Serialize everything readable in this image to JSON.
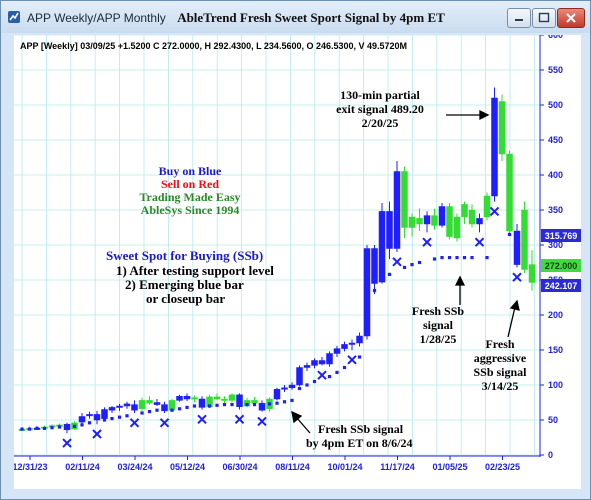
{
  "window": {
    "tab_label": "APP Weekly/APP Monthly",
    "title": "AbleTrend Fresh Sweet Sport Signal by 4pm ET",
    "minimize_icon": "minimize-icon",
    "maximize_icon": "maximize-icon",
    "close_icon": "close-icon"
  },
  "chart_header": "APP [Weekly] 03/09/25 +1.5200 C 272.0000, H 292.4300, L 234.5600, O 246.5300, V 49.5720M",
  "colors": {
    "up_bar": "#33dd33",
    "down_bar": "#1e1eff",
    "grid": "#b6eaea",
    "axis_text": "#2020dd",
    "annotation_blue": "#1a1acc",
    "annotation_red": "#ee1111",
    "annotation_green": "#2a8a2a",
    "badge_blue": "#2b2bd6",
    "badge_green": "#3fdc3f"
  },
  "annotations": {
    "buy_blue": "Buy on Blue",
    "sell_red": "Sell on Red",
    "trading_easy": "Trading Made Easy",
    "ablesys": "AbleSys Since 1994",
    "sweet_title": "Sweet Spot for Buying (SSb)",
    "sweet_1": "1) After testing support level",
    "sweet_2": "2) Emerging blue bar",
    "sweet_3": "or closeup bar",
    "exit_1": "130-min partial",
    "exit_2": "exit signal 489.20",
    "exit_3": "2/20/25",
    "ssb_jan_1": "Fresh SSb",
    "ssb_jan_2": "signal",
    "ssb_jan_3": "1/28/25",
    "ssb_aug_1": "Fresh SSb signal",
    "ssb_aug_2": "by 4pm ET on 8/6/24",
    "ssb_mar_1": "Fresh",
    "ssb_mar_2": "aggressive",
    "ssb_mar_3": "SSb signal",
    "ssb_mar_4": "3/14/25"
  },
  "price_badges": [
    "315.769",
    "272.000",
    "242.107"
  ],
  "chart_data": {
    "type": "candlestick",
    "title": "AbleTrend Fresh Sweet Sport Signal by 4pm ET",
    "xlabel": "",
    "ylabel": "",
    "ylim": [
      0,
      600
    ],
    "yticks": [
      0,
      50,
      100,
      150,
      200,
      250,
      300,
      350,
      400,
      450,
      500,
      550,
      600
    ],
    "xticks": [
      "12/31/23",
      "02/11/24",
      "03/24/24",
      "05/12/24",
      "06/30/24",
      "08/11/24",
      "10/01/24",
      "11/17/24",
      "01/05/25",
      "02/23/25"
    ],
    "grid": true,
    "weeks": [
      {
        "o": 36.5,
        "h": 39.0,
        "l": 35.0,
        "c": 37.0,
        "d": "up",
        "s": 37,
        "x": false
      },
      {
        "o": 37.5,
        "h": 40.5,
        "l": 36.0,
        "c": 38.0,
        "d": "up",
        "s": 37,
        "x": false
      },
      {
        "o": 38.5,
        "h": 41.0,
        "l": 37.0,
        "c": 38.0,
        "d": "down",
        "s": 38,
        "x": false
      },
      {
        "o": 38.0,
        "h": 42.0,
        "l": 36.5,
        "c": 40.0,
        "d": "up",
        "s": 38,
        "x": false
      },
      {
        "o": 40.0,
        "h": 44.0,
        "l": 38.0,
        "c": 42.0,
        "d": "up",
        "s": 39,
        "x": false
      },
      {
        "o": 42.0,
        "h": 45.0,
        "l": 40.0,
        "c": 43.0,
        "d": "up",
        "s": 40,
        "x": false
      },
      {
        "o": 44.0,
        "h": 46.0,
        "l": 31.0,
        "c": 36.0,
        "d": "down",
        "s": null,
        "x": true
      },
      {
        "o": 37.0,
        "h": 48.0,
        "l": 36.0,
        "c": 46.0,
        "d": "up",
        "s": 41,
        "x": false
      },
      {
        "o": 47.0,
        "h": 60.0,
        "l": 45.0,
        "c": 55.0,
        "d": "down",
        "s": 43,
        "x": false
      },
      {
        "o": 56.0,
        "h": 62.0,
        "l": 52.0,
        "c": 58.0,
        "d": "down",
        "s": 46,
        "x": false
      },
      {
        "o": 58.0,
        "h": 63.0,
        "l": 44.0,
        "c": 50.0,
        "d": "down",
        "s": null,
        "x": true
      },
      {
        "o": 52.0,
        "h": 68.0,
        "l": 50.0,
        "c": 65.0,
        "d": "down",
        "s": 50,
        "x": false
      },
      {
        "o": 64.0,
        "h": 70.0,
        "l": 60.0,
        "c": 68.0,
        "d": "down",
        "s": 52,
        "x": false
      },
      {
        "o": 68.0,
        "h": 73.0,
        "l": 63.0,
        "c": 70.0,
        "d": "down",
        "s": 54,
        "x": false
      },
      {
        "o": 70.0,
        "h": 76.0,
        "l": 66.0,
        "c": 73.0,
        "d": "down",
        "s": 56,
        "x": false
      },
      {
        "o": 72.0,
        "h": 78.0,
        "l": 60.0,
        "c": 64.0,
        "d": "down",
        "s": null,
        "x": true
      },
      {
        "o": 66.0,
        "h": 82.0,
        "l": 63.0,
        "c": 78.0,
        "d": "up",
        "s": 60,
        "x": false
      },
      {
        "o": 78.0,
        "h": 84.0,
        "l": 72.0,
        "c": 74.0,
        "d": "up",
        "s": 62,
        "x": false
      },
      {
        "o": 75.0,
        "h": 80.0,
        "l": 70.0,
        "c": 72.0,
        "d": "down",
        "s": 64,
        "x": false
      },
      {
        "o": 72.0,
        "h": 76.0,
        "l": 60.0,
        "c": 63.0,
        "d": "down",
        "s": null,
        "x": true
      },
      {
        "o": 64.0,
        "h": 80.0,
        "l": 62.0,
        "c": 78.0,
        "d": "up",
        "s": 64,
        "x": false
      },
      {
        "o": 78.0,
        "h": 86.0,
        "l": 76.0,
        "c": 84.0,
        "d": "down",
        "s": 66,
        "x": false
      },
      {
        "o": 84.0,
        "h": 88.0,
        "l": 77.0,
        "c": 80.0,
        "d": "down",
        "s": 68,
        "x": false
      },
      {
        "o": 80.0,
        "h": 85.0,
        "l": 75.0,
        "c": 82.0,
        "d": "up",
        "s": 70,
        "x": false
      },
      {
        "o": 80.0,
        "h": 84.0,
        "l": 65.0,
        "c": 68.0,
        "d": "down",
        "s": null,
        "x": true
      },
      {
        "o": 69.0,
        "h": 86.0,
        "l": 67.0,
        "c": 83.0,
        "d": "up",
        "s": 70,
        "x": false
      },
      {
        "o": 83.0,
        "h": 88.0,
        "l": 78.0,
        "c": 80.0,
        "d": "up",
        "s": 71,
        "x": false
      },
      {
        "o": 80.0,
        "h": 84.0,
        "l": 74.0,
        "c": 78.0,
        "d": "up",
        "s": 72,
        "x": false
      },
      {
        "o": 78.0,
        "h": 88.0,
        "l": 75.0,
        "c": 86.0,
        "d": "up",
        "s": 72,
        "x": false
      },
      {
        "o": 86.0,
        "h": 88.0,
        "l": 65.0,
        "c": 69.0,
        "d": "down",
        "s": null,
        "x": true
      },
      {
        "o": 70.0,
        "h": 82.0,
        "l": 68.0,
        "c": 78.0,
        "d": "up",
        "s": 72,
        "x": false
      },
      {
        "o": 78.0,
        "h": 83.0,
        "l": 70.0,
        "c": 74.0,
        "d": "up",
        "s": 72,
        "x": false
      },
      {
        "o": 74.0,
        "h": 78.0,
        "l": 62.0,
        "c": 64.0,
        "d": "down",
        "s": null,
        "x": true
      },
      {
        "o": 66.0,
        "h": 82.0,
        "l": 62.0,
        "c": 80.0,
        "d": "up",
        "s": 73,
        "x": false
      },
      {
        "o": 80.0,
        "h": 96.0,
        "l": 78.0,
        "c": 94.0,
        "d": "down",
        "s": 74,
        "x": false
      },
      {
        "o": 94.0,
        "h": 100.0,
        "l": 90.0,
        "c": 96.0,
        "d": "down",
        "s": 76,
        "x": false
      },
      {
        "o": 96.0,
        "h": 104.0,
        "l": 93.0,
        "c": 100.0,
        "d": "down",
        "s": 78,
        "x": false
      },
      {
        "o": 100.0,
        "h": 128.0,
        "l": 98.0,
        "c": 125.0,
        "d": "down",
        "s": 95,
        "x": false
      },
      {
        "o": 125.0,
        "h": 132.0,
        "l": 120.0,
        "c": 128.0,
        "d": "down",
        "s": 100,
        "x": false
      },
      {
        "o": 128.0,
        "h": 138.0,
        "l": 124.0,
        "c": 135.0,
        "d": "down",
        "s": 105,
        "x": false
      },
      {
        "o": 135.0,
        "h": 140.0,
        "l": 128.0,
        "c": 130.0,
        "d": "down",
        "s": null,
        "x": true
      },
      {
        "o": 130.0,
        "h": 148.0,
        "l": 126.0,
        "c": 145.0,
        "d": "down",
        "s": 112,
        "x": false
      },
      {
        "o": 145.0,
        "h": 156.0,
        "l": 140.0,
        "c": 152.0,
        "d": "down",
        "s": 118,
        "x": false
      },
      {
        "o": 152.0,
        "h": 162.0,
        "l": 148.0,
        "c": 158.0,
        "d": "down",
        "s": 125,
        "x": false
      },
      {
        "o": 158.0,
        "h": 165.0,
        "l": 150.0,
        "c": 160.0,
        "d": "down",
        "s": null,
        "x": true
      },
      {
        "o": 160.0,
        "h": 175.0,
        "l": 155.0,
        "c": 170.0,
        "d": "down",
        "s": 140,
        "x": false
      },
      {
        "o": 170.0,
        "h": 300.0,
        "l": 165.0,
        "c": 295.0,
        "d": "down",
        "s": 180,
        "x": false
      },
      {
        "o": 295.0,
        "h": 300.0,
        "l": 230.0,
        "c": 245.0,
        "d": "down",
        "s": 235,
        "x": false
      },
      {
        "o": 247.0,
        "h": 360.0,
        "l": 245.0,
        "c": 348.0,
        "d": "down",
        "s": 250,
        "x": false
      },
      {
        "o": 348.0,
        "h": 362.0,
        "l": 280.0,
        "c": 295.0,
        "d": "down",
        "s": 258,
        "x": false
      },
      {
        "o": 295.0,
        "h": 420.0,
        "l": 290.0,
        "c": 405.0,
        "d": "down",
        "s": null,
        "x": true
      },
      {
        "o": 405.0,
        "h": 412.0,
        "l": 310.0,
        "c": 325.0,
        "d": "up",
        "s": 268,
        "x": false
      },
      {
        "o": 325.0,
        "h": 345.0,
        "l": 312.0,
        "c": 340.0,
        "d": "up",
        "s": 272,
        "x": false
      },
      {
        "o": 338.0,
        "h": 352.0,
        "l": 320.0,
        "c": 330.0,
        "d": "up",
        "s": 275,
        "x": false
      },
      {
        "o": 330.0,
        "h": 348.0,
        "l": 318.0,
        "c": 342.0,
        "d": "down",
        "s": null,
        "x": true
      },
      {
        "o": 342.0,
        "h": 352.0,
        "l": 322.0,
        "c": 328.0,
        "d": "up",
        "s": 280,
        "x": false
      },
      {
        "o": 328.0,
        "h": 360.0,
        "l": 325.0,
        "c": 355.0,
        "d": "down",
        "s": 282,
        "x": false
      },
      {
        "o": 355.0,
        "h": 360.0,
        "l": 308.0,
        "c": 312.0,
        "d": "up",
        "s": 282,
        "x": false
      },
      {
        "o": 310.0,
        "h": 345.0,
        "l": 305.0,
        "c": 340.0,
        "d": "up",
        "s": 282,
        "x": false
      },
      {
        "o": 340.0,
        "h": 362.0,
        "l": 330.0,
        "c": 358.0,
        "d": "up",
        "s": 282,
        "x": false
      },
      {
        "o": 350.0,
        "h": 358.0,
        "l": 325.0,
        "c": 330.0,
        "d": "up",
        "s": 282,
        "x": false
      },
      {
        "o": 330.0,
        "h": 345.0,
        "l": 318.0,
        "c": 338.0,
        "d": "down",
        "s": null,
        "x": true
      },
      {
        "o": 340.0,
        "h": 375.0,
        "l": 335.0,
        "c": 370.0,
        "d": "up",
        "s": 282,
        "x": false
      },
      {
        "o": 370.0,
        "h": 525.0,
        "l": 362.0,
        "c": 510.0,
        "d": "down",
        "s": null,
        "x": true
      },
      {
        "o": 505.0,
        "h": 515.0,
        "l": 420.0,
        "c": 430.0,
        "d": "up",
        "s": null,
        "x": false
      },
      {
        "o": 430.0,
        "h": 435.0,
        "l": 315.0,
        "c": 320.0,
        "d": "up",
        "s": 315,
        "x": false
      },
      {
        "o": 320.0,
        "h": 330.0,
        "l": 268.0,
        "c": 272.0,
        "d": "down",
        "s": null,
        "x": true
      },
      {
        "o": 350.0,
        "h": 362.0,
        "l": 260.0,
        "c": 265.0,
        "d": "up",
        "s": null,
        "x": false
      },
      {
        "o": 246.5,
        "h": 292.4,
        "l": 234.6,
        "c": 272.0,
        "d": "up",
        "s": null,
        "x": false
      }
    ]
  }
}
